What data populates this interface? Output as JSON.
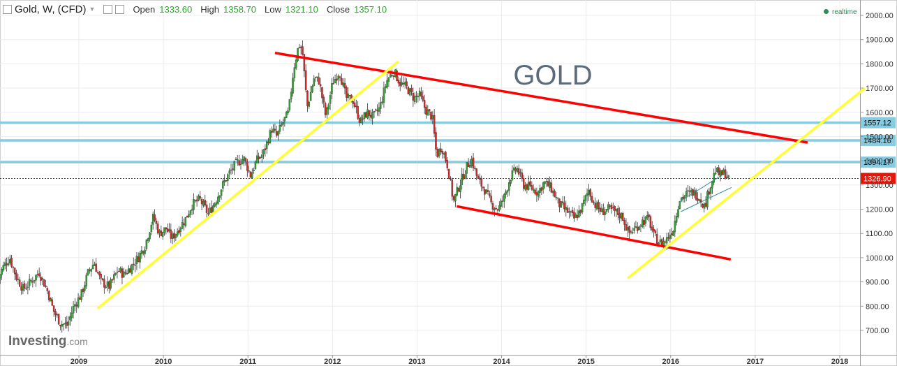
{
  "header": {
    "symbol": "Gold, W, (CFD)",
    "open_label": "Open",
    "open_value": "1333.60",
    "high_label": "High",
    "high_value": "1358.70",
    "low_label": "Low",
    "low_value": "1321.10",
    "close_label": "Close",
    "close_value": "1357.10",
    "realtime": "realtime"
  },
  "logo": {
    "brand": "Investing",
    "suffix": ".com"
  },
  "colors": {
    "up": "#2ca02c",
    "down": "#d62728",
    "trend_red": "#ff0000",
    "trend_yellow": "#ffff33",
    "level": "#87cbe0",
    "price_line": "#cc0000",
    "price_tag": "#e3170a"
  },
  "chart_data": {
    "type": "candlestick",
    "title": "GOLD",
    "ylim": [
      650,
      2050
    ],
    "y_ticks": [
      "700.00",
      "800.00",
      "900.00",
      "1000.00",
      "1100.00",
      "1200.00",
      "1300.00",
      "1400.00",
      "1500.00",
      "1600.00",
      "1700.00",
      "1800.00",
      "1900.00",
      "2000.00"
    ],
    "x_ticks": [
      "2009",
      "2010",
      "2011",
      "2012",
      "2013",
      "2014",
      "2015",
      "2016",
      "2017",
      "2018"
    ],
    "xlim": [
      2008.05,
      2018.3
    ],
    "levels": [
      {
        "label": "1557.12",
        "value": 1557.12
      },
      {
        "label": "1484.16",
        "value": 1484.16
      },
      {
        "label": "1394.17",
        "value": 1394.17
      }
    ],
    "current_price": {
      "label": "1326.90",
      "value": 1326.9
    },
    "trendlines": [
      {
        "color": "red",
        "points": [
          [
            2011.32,
            1845
          ],
          [
            2017.62,
            1475
          ]
        ]
      },
      {
        "color": "red",
        "points": [
          [
            2013.47,
            1212
          ],
          [
            2016.71,
            993
          ]
        ]
      },
      {
        "color": "yellow",
        "points": [
          [
            2009.22,
            790
          ],
          [
            2012.78,
            1810
          ]
        ]
      },
      {
        "color": "yellow",
        "points": [
          [
            2015.49,
            915
          ],
          [
            2018.3,
            1700
          ]
        ]
      }
    ],
    "price_path": [
      [
        2008.05,
        900
      ],
      [
        2008.12,
        960
      ],
      [
        2008.2,
        1000
      ],
      [
        2008.28,
        920
      ],
      [
        2008.36,
        870
      ],
      [
        2008.45,
        900
      ],
      [
        2008.55,
        940
      ],
      [
        2008.65,
        860
      ],
      [
        2008.72,
        780
      ],
      [
        2008.8,
        730
      ],
      [
        2008.88,
        720
      ],
      [
        2008.96,
        800
      ],
      [
        2009.05,
        850
      ],
      [
        2009.13,
        940
      ],
      [
        2009.2,
        980
      ],
      [
        2009.28,
        900
      ],
      [
        2009.38,
        880
      ],
      [
        2009.48,
        950
      ],
      [
        2009.55,
        930
      ],
      [
        2009.63,
        960
      ],
      [
        2009.72,
        1000
      ],
      [
        2009.8,
        1050
      ],
      [
        2009.9,
        1170
      ],
      [
        2009.97,
        1100
      ],
      [
        2010.05,
        1120
      ],
      [
        2010.12,
        1080
      ],
      [
        2010.2,
        1120
      ],
      [
        2010.28,
        1160
      ],
      [
        2010.36,
        1220
      ],
      [
        2010.45,
        1240
      ],
      [
        2010.55,
        1180
      ],
      [
        2010.63,
        1230
      ],
      [
        2010.72,
        1300
      ],
      [
        2010.8,
        1350
      ],
      [
        2010.88,
        1390
      ],
      [
        2010.97,
        1410
      ],
      [
        2011.05,
        1340
      ],
      [
        2011.12,
        1400
      ],
      [
        2011.2,
        1430
      ],
      [
        2011.3,
        1530
      ],
      [
        2011.36,
        1500
      ],
      [
        2011.42,
        1550
      ],
      [
        2011.5,
        1600
      ],
      [
        2011.56,
        1780
      ],
      [
        2011.62,
        1880
      ],
      [
        2011.66,
        1860
      ],
      [
        2011.72,
        1620
      ],
      [
        2011.8,
        1740
      ],
      [
        2011.86,
        1730
      ],
      [
        2011.94,
        1580
      ],
      [
        2012.02,
        1720
      ],
      [
        2012.1,
        1770
      ],
      [
        2012.18,
        1660
      ],
      [
        2012.26,
        1650
      ],
      [
        2012.35,
        1560
      ],
      [
        2012.43,
        1600
      ],
      [
        2012.5,
        1580
      ],
      [
        2012.58,
        1620
      ],
      [
        2012.66,
        1730
      ],
      [
        2012.74,
        1770
      ],
      [
        2012.82,
        1720
      ],
      [
        2012.9,
        1700
      ],
      [
        2012.98,
        1660
      ],
      [
        2013.05,
        1670
      ],
      [
        2013.12,
        1610
      ],
      [
        2013.2,
        1580
      ],
      [
        2013.25,
        1420
      ],
      [
        2013.31,
        1460
      ],
      [
        2013.38,
        1380
      ],
      [
        2013.45,
        1230
      ],
      [
        2013.52,
        1300
      ],
      [
        2013.6,
        1370
      ],
      [
        2013.66,
        1410
      ],
      [
        2013.74,
        1320
      ],
      [
        2013.82,
        1280
      ],
      [
        2013.9,
        1220
      ],
      [
        2013.98,
        1200
      ],
      [
        2014.05,
        1250
      ],
      [
        2014.12,
        1330
      ],
      [
        2014.2,
        1370
      ],
      [
        2014.28,
        1300
      ],
      [
        2014.36,
        1290
      ],
      [
        2014.45,
        1270
      ],
      [
        2014.52,
        1310
      ],
      [
        2014.6,
        1290
      ],
      [
        2014.7,
        1220
      ],
      [
        2014.8,
        1190
      ],
      [
        2014.88,
        1160
      ],
      [
        2014.96,
        1200
      ],
      [
        2015.05,
        1280
      ],
      [
        2015.12,
        1220
      ],
      [
        2015.2,
        1190
      ],
      [
        2015.28,
        1200
      ],
      [
        2015.36,
        1190
      ],
      [
        2015.45,
        1170
      ],
      [
        2015.52,
        1100
      ],
      [
        2015.6,
        1120
      ],
      [
        2015.68,
        1150
      ],
      [
        2015.76,
        1160
      ],
      [
        2015.82,
        1090
      ],
      [
        2015.9,
        1060
      ],
      [
        2015.96,
        1070
      ],
      [
        2016.05,
        1120
      ],
      [
        2016.12,
        1240
      ],
      [
        2016.2,
        1260
      ],
      [
        2016.28,
        1270
      ],
      [
        2016.36,
        1250
      ],
      [
        2016.42,
        1210
      ],
      [
        2016.48,
        1290
      ],
      [
        2016.55,
        1360
      ],
      [
        2016.6,
        1340
      ],
      [
        2016.66,
        1350
      ],
      [
        2016.7,
        1330
      ]
    ],
    "wedge": [
      [
        2016.1,
        1230
      ],
      [
        2016.65,
        1350
      ],
      [
        2016.12,
        1190
      ],
      [
        2016.72,
        1290
      ]
    ]
  }
}
